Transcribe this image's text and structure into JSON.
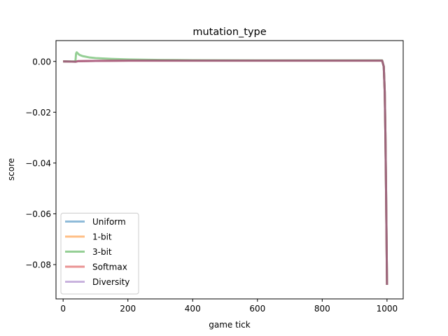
{
  "chart_data": {
    "type": "line",
    "title": "mutation_type",
    "xlabel": "game tick",
    "ylabel": "score",
    "xlim": [
      -22,
      1050
    ],
    "ylim": [
      -0.0935,
      0.0082
    ],
    "xticks": [
      0,
      200,
      400,
      600,
      800,
      1000
    ],
    "xtick_labels": [
      "0",
      "200",
      "400",
      "600",
      "800",
      "1000"
    ],
    "yticks": [
      0.0,
      -0.02,
      -0.04,
      -0.06,
      -0.08
    ],
    "ytick_labels": [
      "0.00",
      "−0.02",
      "−0.04",
      "−0.06",
      "−0.08"
    ],
    "grid": false,
    "legend_position": "lower-left",
    "series": [
      {
        "name": "Uniform",
        "color": "#1f77b4",
        "x": [
          0,
          40,
          45,
          100,
          200,
          400,
          600,
          800,
          985,
          990,
          993,
          995,
          997,
          999,
          1000
        ],
        "y": [
          0.0,
          -0.0001,
          0.0001,
          0.0002,
          0.0003,
          0.0003,
          0.0003,
          0.0003,
          0.0003,
          -0.002,
          -0.012,
          -0.028,
          -0.05,
          -0.075,
          -0.088
        ]
      },
      {
        "name": "1-bit",
        "color": "#ff7f0e",
        "x": [
          0,
          40,
          45,
          100,
          200,
          400,
          600,
          800,
          985,
          990,
          993,
          995,
          997,
          999,
          1000
        ],
        "y": [
          0.0,
          -0.0001,
          0.0001,
          0.0002,
          0.0003,
          0.0003,
          0.0003,
          0.0003,
          0.0003,
          -0.002,
          -0.012,
          -0.028,
          -0.05,
          -0.075,
          -0.088
        ]
      },
      {
        "name": "3-bit",
        "color": "#2ca02c",
        "x": [
          0,
          38,
          40,
          42,
          45,
          50,
          60,
          80,
          100,
          150,
          200,
          300,
          400,
          600,
          800,
          985,
          990,
          993,
          995,
          997,
          999,
          1000
        ],
        "y": [
          0.0,
          0.0,
          0.0031,
          0.0036,
          0.0032,
          0.0026,
          0.0021,
          0.0016,
          0.0013,
          0.001,
          0.0008,
          0.0006,
          0.0005,
          0.0004,
          0.0004,
          0.0004,
          -0.002,
          -0.012,
          -0.028,
          -0.05,
          -0.075,
          -0.088
        ]
      },
      {
        "name": "Softmax",
        "color": "#d62728",
        "x": [
          0,
          40,
          45,
          100,
          200,
          400,
          600,
          800,
          985,
          990,
          993,
          995,
          997,
          999,
          1000
        ],
        "y": [
          0.0,
          -0.0001,
          0.0001,
          0.0002,
          0.0003,
          0.0003,
          0.0003,
          0.0003,
          0.0003,
          -0.002,
          -0.012,
          -0.028,
          -0.05,
          -0.075,
          -0.088
        ]
      },
      {
        "name": "Diversity",
        "color": "#9467bd",
        "x": [
          0,
          40,
          45,
          100,
          200,
          400,
          600,
          800,
          985,
          990,
          993,
          995,
          997,
          999,
          1000
        ],
        "y": [
          0.0,
          -0.0001,
          0.0001,
          0.0002,
          0.0003,
          0.0003,
          0.0003,
          0.0003,
          0.0003,
          -0.002,
          -0.012,
          -0.028,
          -0.05,
          -0.075,
          -0.088
        ]
      }
    ]
  }
}
